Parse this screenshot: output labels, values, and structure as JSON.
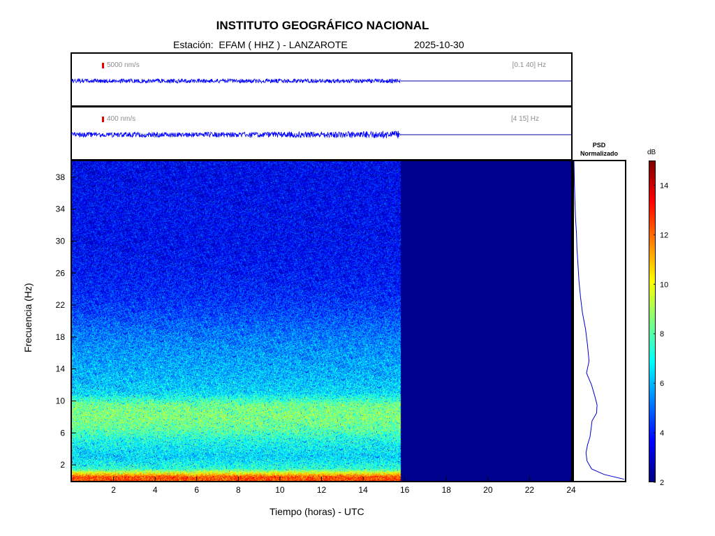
{
  "header": {
    "title": "INSTITUTO GEOGRÁFICO NACIONAL",
    "station_label": "Estación:  EFAM ( HHZ ) - LANZAROTE",
    "date": "2025-10-30"
  },
  "traces": [
    {
      "scale_label": "5000 nm/s",
      "band_label": "[0.1 40] Hz",
      "data_end_hour": 15.8,
      "amplitude": 0.08
    },
    {
      "scale_label": "400 nm/s",
      "band_label": "[4 15] Hz",
      "data_end_hour": 15.8,
      "amplitude": 0.12
    }
  ],
  "psd": {
    "title_line1": "PSD",
    "title_line2": "Normalizado"
  },
  "colorbar": {
    "unit": "dB",
    "range": [
      2,
      15
    ],
    "ticks": [
      "2",
      "4",
      "6",
      "8",
      "10",
      "12",
      "14"
    ],
    "colors": [
      "#00007f",
      "#0000ff",
      "#007fff",
      "#00ffff",
      "#7fff7f",
      "#ffff00",
      "#ff7f00",
      "#ff0000",
      "#7f0000"
    ]
  },
  "chart_data": {
    "type": "heatmap",
    "xlabel": "Tiempo (horas) - UTC",
    "ylabel": "Frecuencia  (Hz)",
    "xlim": [
      0,
      24
    ],
    "ylim": [
      0,
      40
    ],
    "x_ticks": [
      "2",
      "4",
      "6",
      "8",
      "10",
      "12",
      "14",
      "16",
      "18",
      "20",
      "22",
      "24"
    ],
    "y_ticks": [
      "2",
      "6",
      "10",
      "14",
      "18",
      "22",
      "26",
      "30",
      "34",
      "38"
    ],
    "data_end_hour": 15.8,
    "frequency_profile_db": [
      {
        "freq": 0.5,
        "db": 12.5
      },
      {
        "freq": 1.5,
        "db": 7.5
      },
      {
        "freq": 3,
        "db": 6.5
      },
      {
        "freq": 5,
        "db": 7.2
      },
      {
        "freq": 6.5,
        "db": 8.2
      },
      {
        "freq": 8,
        "db": 8.6
      },
      {
        "freq": 9.5,
        "db": 8.4
      },
      {
        "freq": 11,
        "db": 6.6
      },
      {
        "freq": 13,
        "db": 6.1
      },
      {
        "freq": 15,
        "db": 5.8
      },
      {
        "freq": 17,
        "db": 5.5
      },
      {
        "freq": 19,
        "db": 5.1
      },
      {
        "freq": 21,
        "db": 4.6
      },
      {
        "freq": 23,
        "db": 4.2
      },
      {
        "freq": 26,
        "db": 3.9
      },
      {
        "freq": 30,
        "db": 3.7
      },
      {
        "freq": 34,
        "db": 3.7
      },
      {
        "freq": 38,
        "db": 3.6
      },
      {
        "freq": 40,
        "db": 3.6
      }
    ],
    "psd_normalized": [
      {
        "freq": 0.2,
        "value": 1.0
      },
      {
        "freq": 0.8,
        "value": 0.6
      },
      {
        "freq": 1.5,
        "value": 0.35
      },
      {
        "freq": 2.5,
        "value": 0.26
      },
      {
        "freq": 3.5,
        "value": 0.24
      },
      {
        "freq": 4.5,
        "value": 0.27
      },
      {
        "freq": 5.5,
        "value": 0.32
      },
      {
        "freq": 6.5,
        "value": 0.34
      },
      {
        "freq": 7.5,
        "value": 0.36
      },
      {
        "freq": 8.5,
        "value": 0.45
      },
      {
        "freq": 9.5,
        "value": 0.46
      },
      {
        "freq": 10.5,
        "value": 0.42
      },
      {
        "freq": 12,
        "value": 0.35
      },
      {
        "freq": 13.5,
        "value": 0.25
      },
      {
        "freq": 15,
        "value": 0.3
      },
      {
        "freq": 17,
        "value": 0.27
      },
      {
        "freq": 19,
        "value": 0.23
      },
      {
        "freq": 21,
        "value": 0.17
      },
      {
        "freq": 23,
        "value": 0.13
      },
      {
        "freq": 25,
        "value": 0.1
      },
      {
        "freq": 27,
        "value": 0.08
      },
      {
        "freq": 29,
        "value": 0.06
      },
      {
        "freq": 31,
        "value": 0.05
      },
      {
        "freq": 33,
        "value": 0.03
      },
      {
        "freq": 35,
        "value": 0.02
      },
      {
        "freq": 37,
        "value": 0.01
      },
      {
        "freq": 40,
        "value": 0.0
      }
    ]
  }
}
